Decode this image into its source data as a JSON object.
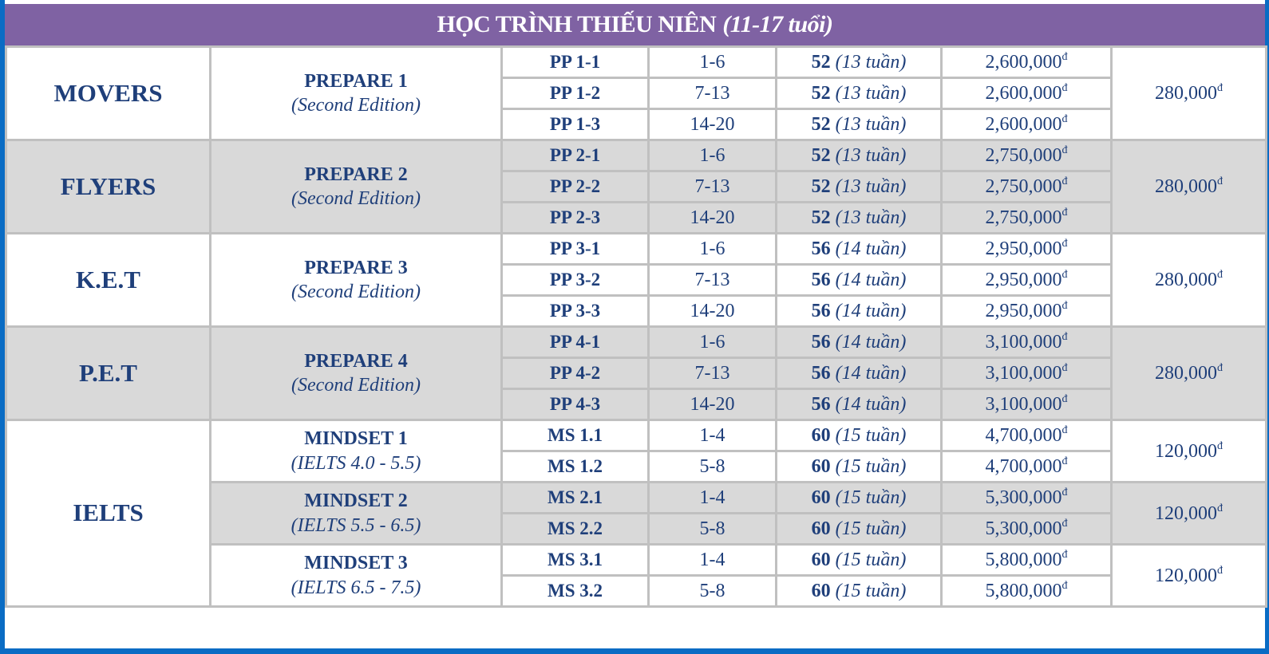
{
  "header": {
    "title": "HỌC TRÌNH THIẾU NIÊN",
    "age": "(11-17 tuổi)"
  },
  "currency": "đ",
  "colors": {
    "header": "#7f62a3",
    "text": "#1f3f7a",
    "shade": "#d9d9d9",
    "border": "#c0c0c0",
    "frame": "#0a6cc4"
  },
  "levels": [
    {
      "name": "MOVERS",
      "shaded": false,
      "books": [
        {
          "title": "PREPARE 1",
          "subtitle": "(Second Edition)",
          "shaded": false,
          "material_fee": "280,000",
          "classes": [
            {
              "code": "PP 1-1",
              "units": "1-6",
              "hours": "52",
              "weeks": "(13 tuần)",
              "fee": "2,600,000"
            },
            {
              "code": "PP 1-2",
              "units": "7-13",
              "hours": "52",
              "weeks": "(13 tuần)",
              "fee": "2,600,000"
            },
            {
              "code": "PP 1-3",
              "units": "14-20",
              "hours": "52",
              "weeks": "(13 tuần)",
              "fee": "2,600,000"
            }
          ]
        }
      ]
    },
    {
      "name": "FLYERS",
      "shaded": true,
      "books": [
        {
          "title": "PREPARE 2",
          "subtitle": "(Second Edition)",
          "shaded": true,
          "material_fee": "280,000",
          "classes": [
            {
              "code": "PP 2-1",
              "units": "1-6",
              "hours": "52",
              "weeks": "(13 tuần)",
              "fee": "2,750,000"
            },
            {
              "code": "PP 2-2",
              "units": "7-13",
              "hours": "52",
              "weeks": "(13 tuần)",
              "fee": "2,750,000"
            },
            {
              "code": "PP 2-3",
              "units": "14-20",
              "hours": "52",
              "weeks": "(13 tuần)",
              "fee": "2,750,000"
            }
          ]
        }
      ]
    },
    {
      "name": "K.E.T",
      "shaded": false,
      "books": [
        {
          "title": "PREPARE 3",
          "subtitle": "(Second Edition)",
          "shaded": false,
          "material_fee": "280,000",
          "classes": [
            {
              "code": "PP 3-1",
              "units": "1-6",
              "hours": "56",
              "weeks": "(14 tuần)",
              "fee": "2,950,000"
            },
            {
              "code": "PP 3-2",
              "units": "7-13",
              "hours": "56",
              "weeks": "(14 tuần)",
              "fee": "2,950,000"
            },
            {
              "code": "PP 3-3",
              "units": "14-20",
              "hours": "56",
              "weeks": "(14 tuần)",
              "fee": "2,950,000"
            }
          ]
        }
      ]
    },
    {
      "name": "P.E.T",
      "shaded": true,
      "books": [
        {
          "title": "PREPARE 4",
          "subtitle": "(Second Edition)",
          "shaded": true,
          "material_fee": "280,000",
          "classes": [
            {
              "code": "PP 4-1",
              "units": "1-6",
              "hours": "56",
              "weeks": "(14 tuần)",
              "fee": "3,100,000"
            },
            {
              "code": "PP 4-2",
              "units": "7-13",
              "hours": "56",
              "weeks": "(14 tuần)",
              "fee": "3,100,000"
            },
            {
              "code": "PP 4-3",
              "units": "14-20",
              "hours": "56",
              "weeks": "(14 tuần)",
              "fee": "3,100,000"
            }
          ]
        }
      ]
    },
    {
      "name": "IELTS",
      "shaded": false,
      "books": [
        {
          "title": "MINDSET 1",
          "subtitle": "(IELTS 4.0 - 5.5)",
          "shaded": false,
          "material_fee": "120,000",
          "classes": [
            {
              "code": "MS 1.1",
              "units": "1-4",
              "hours": "60",
              "weeks": "(15 tuần)",
              "fee": "4,700,000"
            },
            {
              "code": "MS 1.2",
              "units": "5-8",
              "hours": "60",
              "weeks": "(15 tuần)",
              "fee": "4,700,000"
            }
          ]
        },
        {
          "title": "MINDSET 2",
          "subtitle": "(IELTS 5.5 - 6.5)",
          "shaded": true,
          "material_fee": "120,000",
          "classes": [
            {
              "code": "MS 2.1",
              "units": "1-4",
              "hours": "60",
              "weeks": "(15 tuần)",
              "fee": "5,300,000"
            },
            {
              "code": "MS 2.2",
              "units": "5-8",
              "hours": "60",
              "weeks": "(15 tuần)",
              "fee": "5,300,000"
            }
          ]
        },
        {
          "title": "MINDSET 3",
          "subtitle": "(IELTS 6.5 - 7.5)",
          "shaded": false,
          "material_fee": "120,000",
          "classes": [
            {
              "code": "MS 3.1",
              "units": "1-4",
              "hours": "60",
              "weeks": "(15 tuần)",
              "fee": "5,800,000"
            },
            {
              "code": "MS 3.2",
              "units": "5-8",
              "hours": "60",
              "weeks": "(15 tuần)",
              "fee": "5,800,000"
            }
          ]
        }
      ]
    }
  ]
}
